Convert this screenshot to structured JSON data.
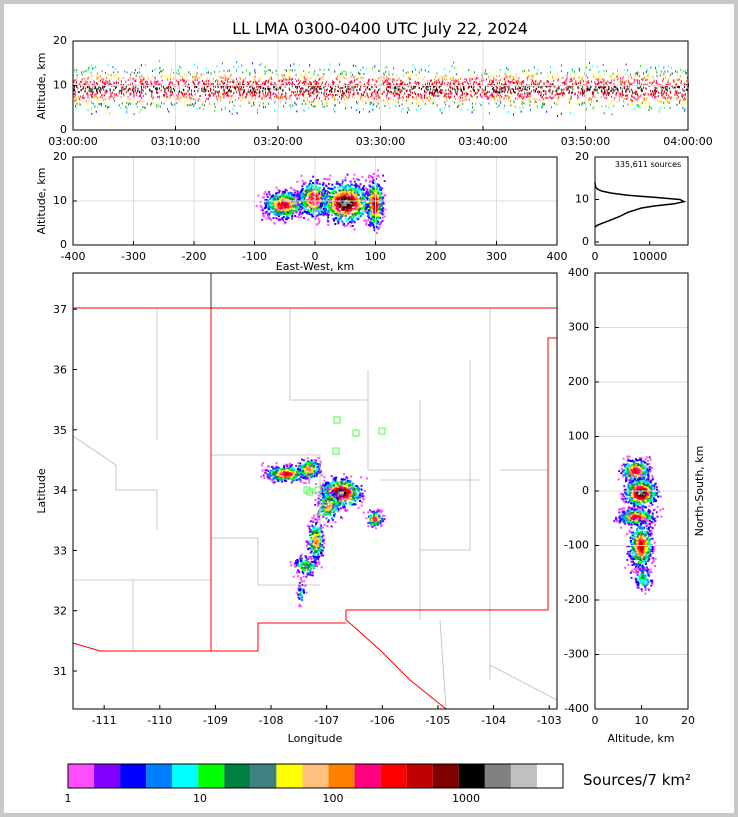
{
  "chart_data": {
    "type": "scatter",
    "title": "LL LMA 0300-0400 UTC July 22, 2024",
    "panels": [
      {
        "id": "time-altitude",
        "ylabel": "Altitude, km",
        "xlabel": "",
        "xlim": [
          "03:00:00",
          "04:00:00"
        ],
        "ylim": [
          0,
          20
        ],
        "xticks": [
          "03:00:00",
          "03:10:00",
          "03:20:00",
          "03:30:00",
          "03:40:00",
          "03:50:00",
          "04:00:00"
        ],
        "yticks": [
          "0",
          "10",
          "20"
        ]
      },
      {
        "id": "ew-altitude",
        "ylabel": "Altitude, km",
        "xlabel": "East-West, km",
        "xlim": [
          -400,
          400
        ],
        "ylim": [
          0,
          20
        ],
        "xticks": [
          "-400",
          "-300",
          "-200",
          "-100",
          "0",
          "100",
          "200",
          "300",
          "400"
        ],
        "yticks": [
          "0",
          "10",
          "20"
        ]
      },
      {
        "id": "altitude-histogram",
        "annotation": "335,611 sources",
        "xlim": [
          0,
          17000
        ],
        "ylim": [
          0,
          20
        ],
        "xticks": [
          "0",
          "10000"
        ],
        "yticks": [
          "0",
          "10",
          "20"
        ],
        "profile": {
          "altitude": [
            3.5,
            4,
            5,
            6,
            7,
            8,
            8.5,
            9,
            9.5,
            10,
            10.5,
            11,
            11.5,
            12,
            12.5,
            13,
            14
          ],
          "count": [
            0,
            500,
            2500,
            4500,
            6000,
            8500,
            11000,
            14500,
            16300,
            15500,
            11000,
            6000,
            3000,
            1200,
            400,
            100,
            0
          ]
        }
      },
      {
        "id": "plan-view",
        "xlabel": "Longitude",
        "ylabel": "Latitude",
        "xlim": [
          -111.56,
          -102.86
        ],
        "ylim": [
          30.37,
          37.6
        ],
        "xticks": [
          "-111",
          "-110",
          "-109",
          "-108",
          "-107",
          "-106",
          "-105",
          "-104",
          "-103"
        ],
        "yticks": [
          "31",
          "32",
          "33",
          "34",
          "35",
          "36",
          "37"
        ]
      },
      {
        "id": "ns-altitude",
        "xlabel": "Altitude, km",
        "ylabel": "North-South, km",
        "xlim": [
          0,
          20
        ],
        "ylim": [
          -400,
          400
        ],
        "xticks": [
          "0",
          "10",
          "20"
        ],
        "yticks": [
          "-400",
          "-300",
          "-200",
          "-100",
          "0",
          "100",
          "200",
          "300",
          "400"
        ]
      }
    ],
    "colorbar": {
      "label": "Sources/7 km²",
      "ticks": [
        "1",
        "10",
        "100",
        "1000"
      ],
      "colors": [
        "#ff4cff",
        "#8000ff",
        "#0000ff",
        "#0080ff",
        "#00ffff",
        "#00ff00",
        "#008040",
        "#408080",
        "#ffff00",
        "#ffc080",
        "#ff8000",
        "#ff0080",
        "#ff0000",
        "#c00000",
        "#800000",
        "#000000",
        "#808080",
        "#c0c0c0",
        "#ffffff"
      ]
    }
  }
}
